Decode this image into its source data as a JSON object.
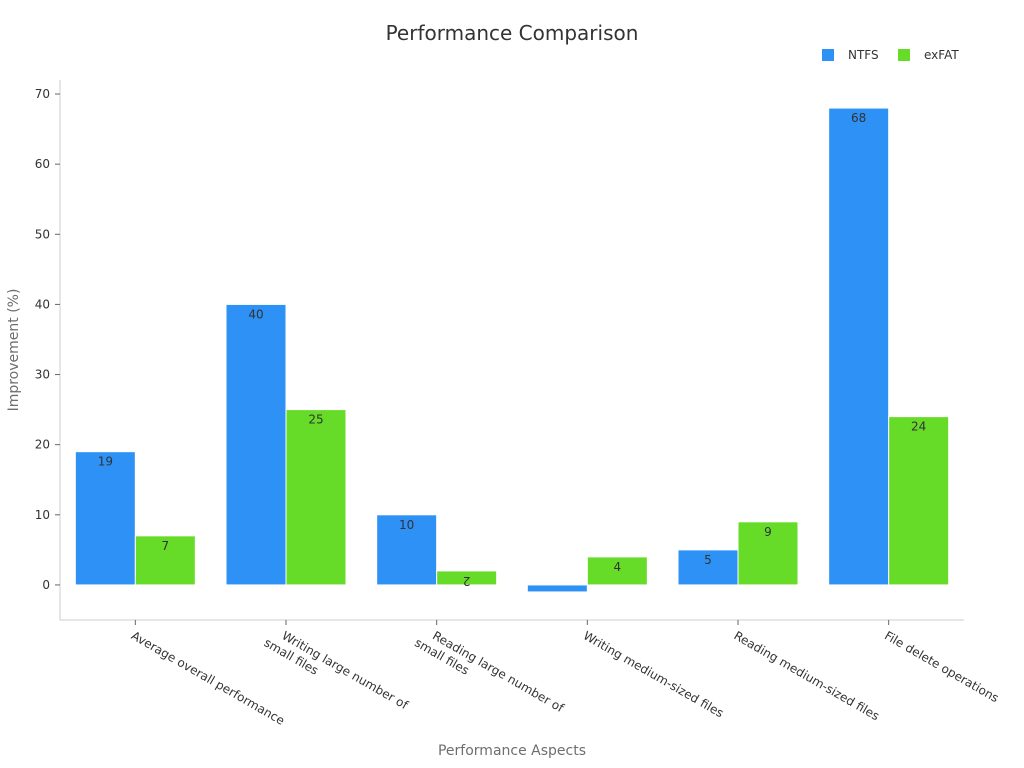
{
  "chart_data": {
    "type": "bar",
    "title": "Performance Comparison",
    "xlabel": "Performance Aspects",
    "ylabel": "Improvement (%)",
    "categories": [
      [
        "Average overall performance"
      ],
      [
        "Writing large number of",
        "small files"
      ],
      [
        "Reading large number of",
        "small files"
      ],
      [
        "Writing medium-sized files"
      ],
      [
        "Reading medium-sized files"
      ],
      [
        "File delete operations"
      ]
    ],
    "series": [
      {
        "name": "NTFS",
        "color": "#2e91f5",
        "values": [
          19,
          40,
          10,
          -1,
          5,
          68
        ],
        "labels": [
          "19",
          "40",
          "10",
          "",
          "5",
          "68"
        ]
      },
      {
        "name": "exFAT",
        "color": "#66dc29",
        "values": [
          7,
          25,
          2,
          4,
          9,
          24
        ],
        "labels": [
          "7",
          "25",
          "2",
          "4",
          "9",
          "24"
        ]
      }
    ],
    "ylim": [
      -5,
      72
    ],
    "yticks": [
      0,
      10,
      20,
      30,
      40,
      50,
      60,
      70
    ],
    "ytick_labels": [
      "0",
      "10",
      "20",
      "30",
      "40",
      "50",
      "60",
      "70"
    ],
    "grid": false,
    "legend_position": "top-right"
  }
}
